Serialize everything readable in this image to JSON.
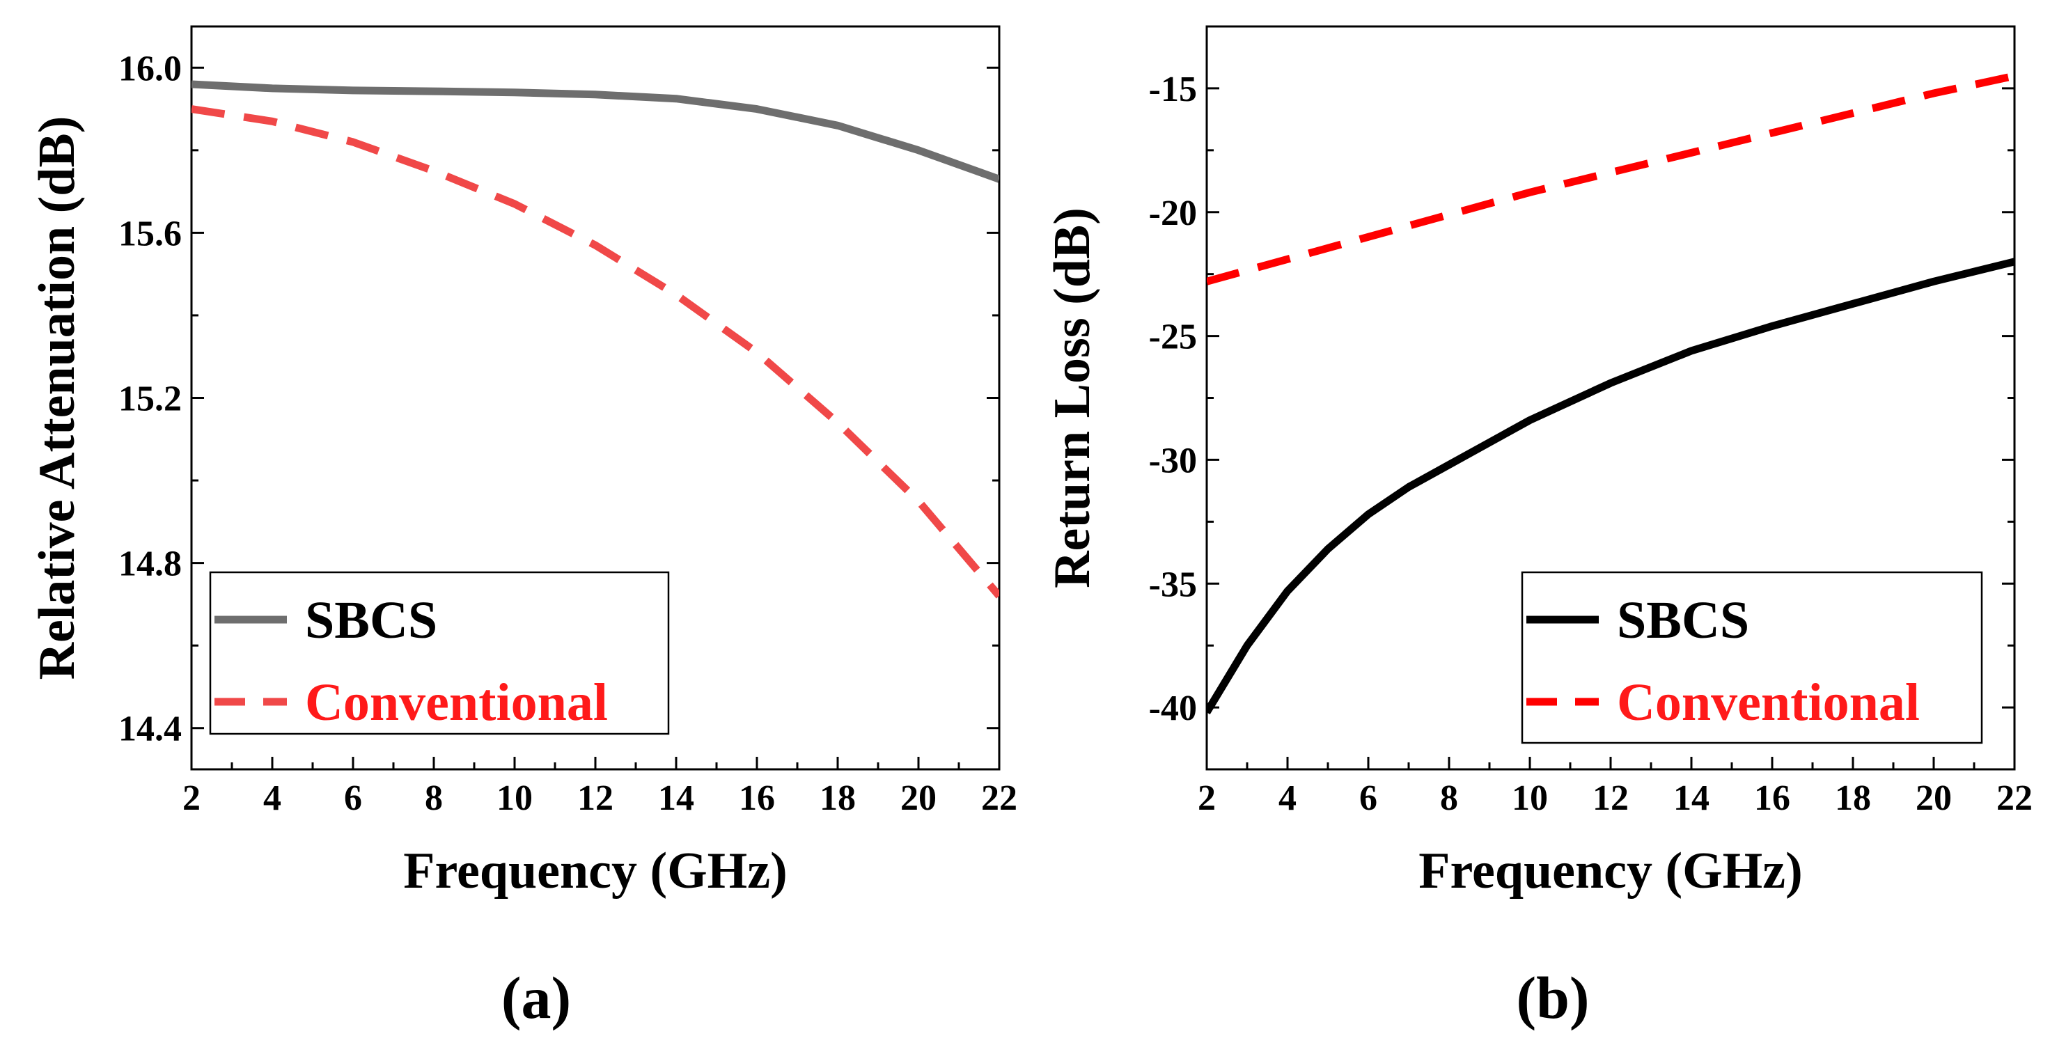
{
  "chart_data": [
    {
      "type": "line",
      "panel_label": "(a)",
      "xlabel": "Frequency (GHz)",
      "ylabel": "Relative Attenuation (dB)",
      "xlim": [
        2,
        22
      ],
      "ylim": [
        14.3,
        16.1
      ],
      "xticks": [
        2,
        4,
        6,
        8,
        10,
        12,
        14,
        16,
        18,
        20,
        22
      ],
      "yticks": [
        14.4,
        14.8,
        15.2,
        15.6,
        16.0
      ],
      "ytick_labels": [
        "14.4",
        "14.8",
        "15.2",
        "15.6",
        "16.0"
      ],
      "legend_position": "bottom-left",
      "series": [
        {
          "name": "SBCS",
          "color": "#6e6e6e",
          "dash": "solid",
          "x": [
            2,
            4,
            6,
            8,
            10,
            12,
            14,
            16,
            18,
            20,
            22
          ],
          "y": [
            15.96,
            15.95,
            15.945,
            15.943,
            15.94,
            15.935,
            15.925,
            15.9,
            15.86,
            15.8,
            15.73
          ]
        },
        {
          "name": "Conventional",
          "color": "#f04848",
          "dash": "dashed",
          "x": [
            2,
            4,
            6,
            8,
            10,
            12,
            14,
            16,
            18,
            20,
            22
          ],
          "y": [
            15.9,
            15.87,
            15.82,
            15.75,
            15.67,
            15.57,
            15.45,
            15.31,
            15.14,
            14.95,
            14.72
          ]
        }
      ]
    },
    {
      "type": "line",
      "panel_label": "(b)",
      "xlabel": "Frequency (GHz)",
      "ylabel": "Return Loss (dB)",
      "xlim": [
        2,
        22
      ],
      "ylim": [
        -42.5,
        -12.5
      ],
      "xticks": [
        2,
        4,
        6,
        8,
        10,
        12,
        14,
        16,
        18,
        20,
        22
      ],
      "yticks": [
        -40,
        -35,
        -30,
        -25,
        -20,
        -15
      ],
      "ytick_labels": [
        "-40",
        "-35",
        "-30",
        "-25",
        "-20",
        "-15"
      ],
      "legend_position": "bottom-right",
      "series": [
        {
          "name": "SBCS",
          "color": "#000000",
          "dash": "solid",
          "x": [
            2,
            3,
            4,
            5,
            6,
            7,
            8,
            10,
            12,
            14,
            16,
            18,
            20,
            22
          ],
          "y": [
            -40.2,
            -37.5,
            -35.3,
            -33.6,
            -32.2,
            -31.1,
            -30.2,
            -28.4,
            -26.9,
            -25.6,
            -24.6,
            -23.7,
            -22.8,
            -22.0
          ]
        },
        {
          "name": "Conventional",
          "color": "#ff0000",
          "dash": "dashed",
          "x": [
            2,
            4,
            6,
            8,
            10,
            12,
            14,
            16,
            18,
            20,
            22
          ],
          "y": [
            -22.8,
            -21.9,
            -21.0,
            -20.1,
            -19.2,
            -18.4,
            -17.6,
            -16.8,
            -16.0,
            -15.2,
            -14.5
          ]
        }
      ]
    }
  ]
}
